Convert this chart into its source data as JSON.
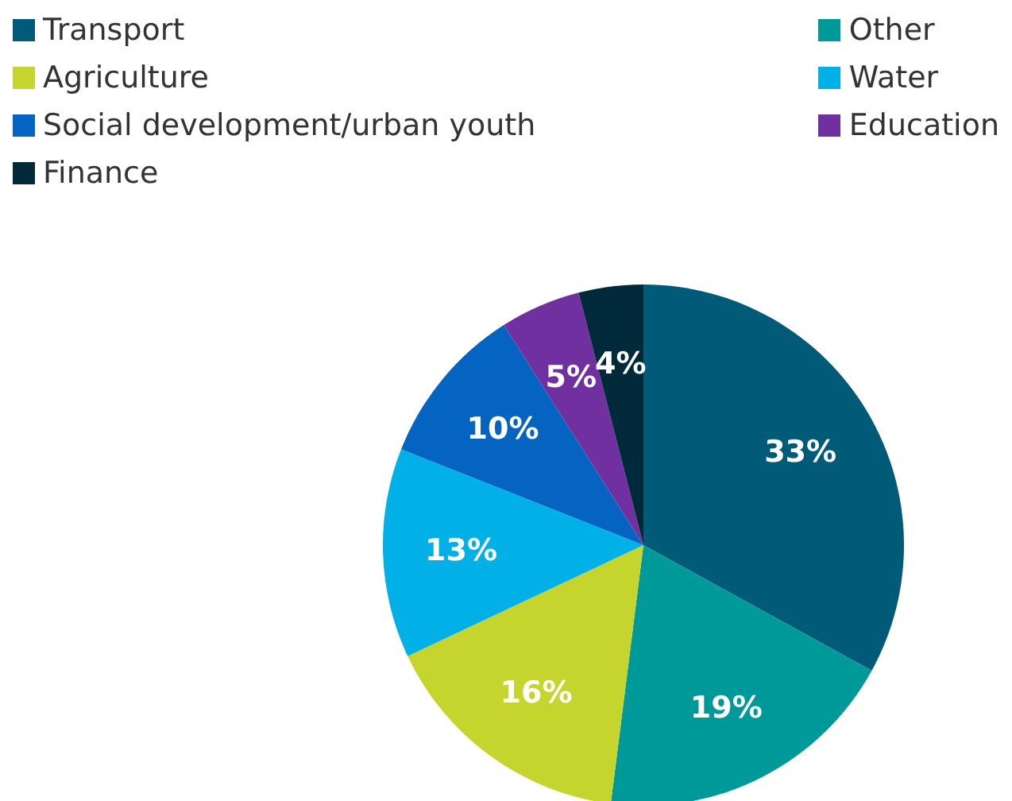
{
  "chart_data": {
    "type": "pie",
    "categories": [
      "Transport",
      "Other",
      "Agriculture",
      "Water",
      "Social development/urban youth",
      "Education",
      "Finance"
    ],
    "values": [
      33,
      19,
      16,
      13,
      10,
      5,
      4
    ],
    "colors": [
      "#005a78",
      "#00999a",
      "#c5d52e",
      "#00b0e6",
      "#0563c1",
      "#7030a0",
      "#002a3a"
    ],
    "value_labels": [
      "33%",
      "19%",
      "16%",
      "13%",
      "10%",
      "5%",
      "4%"
    ],
    "legend": "top"
  }
}
